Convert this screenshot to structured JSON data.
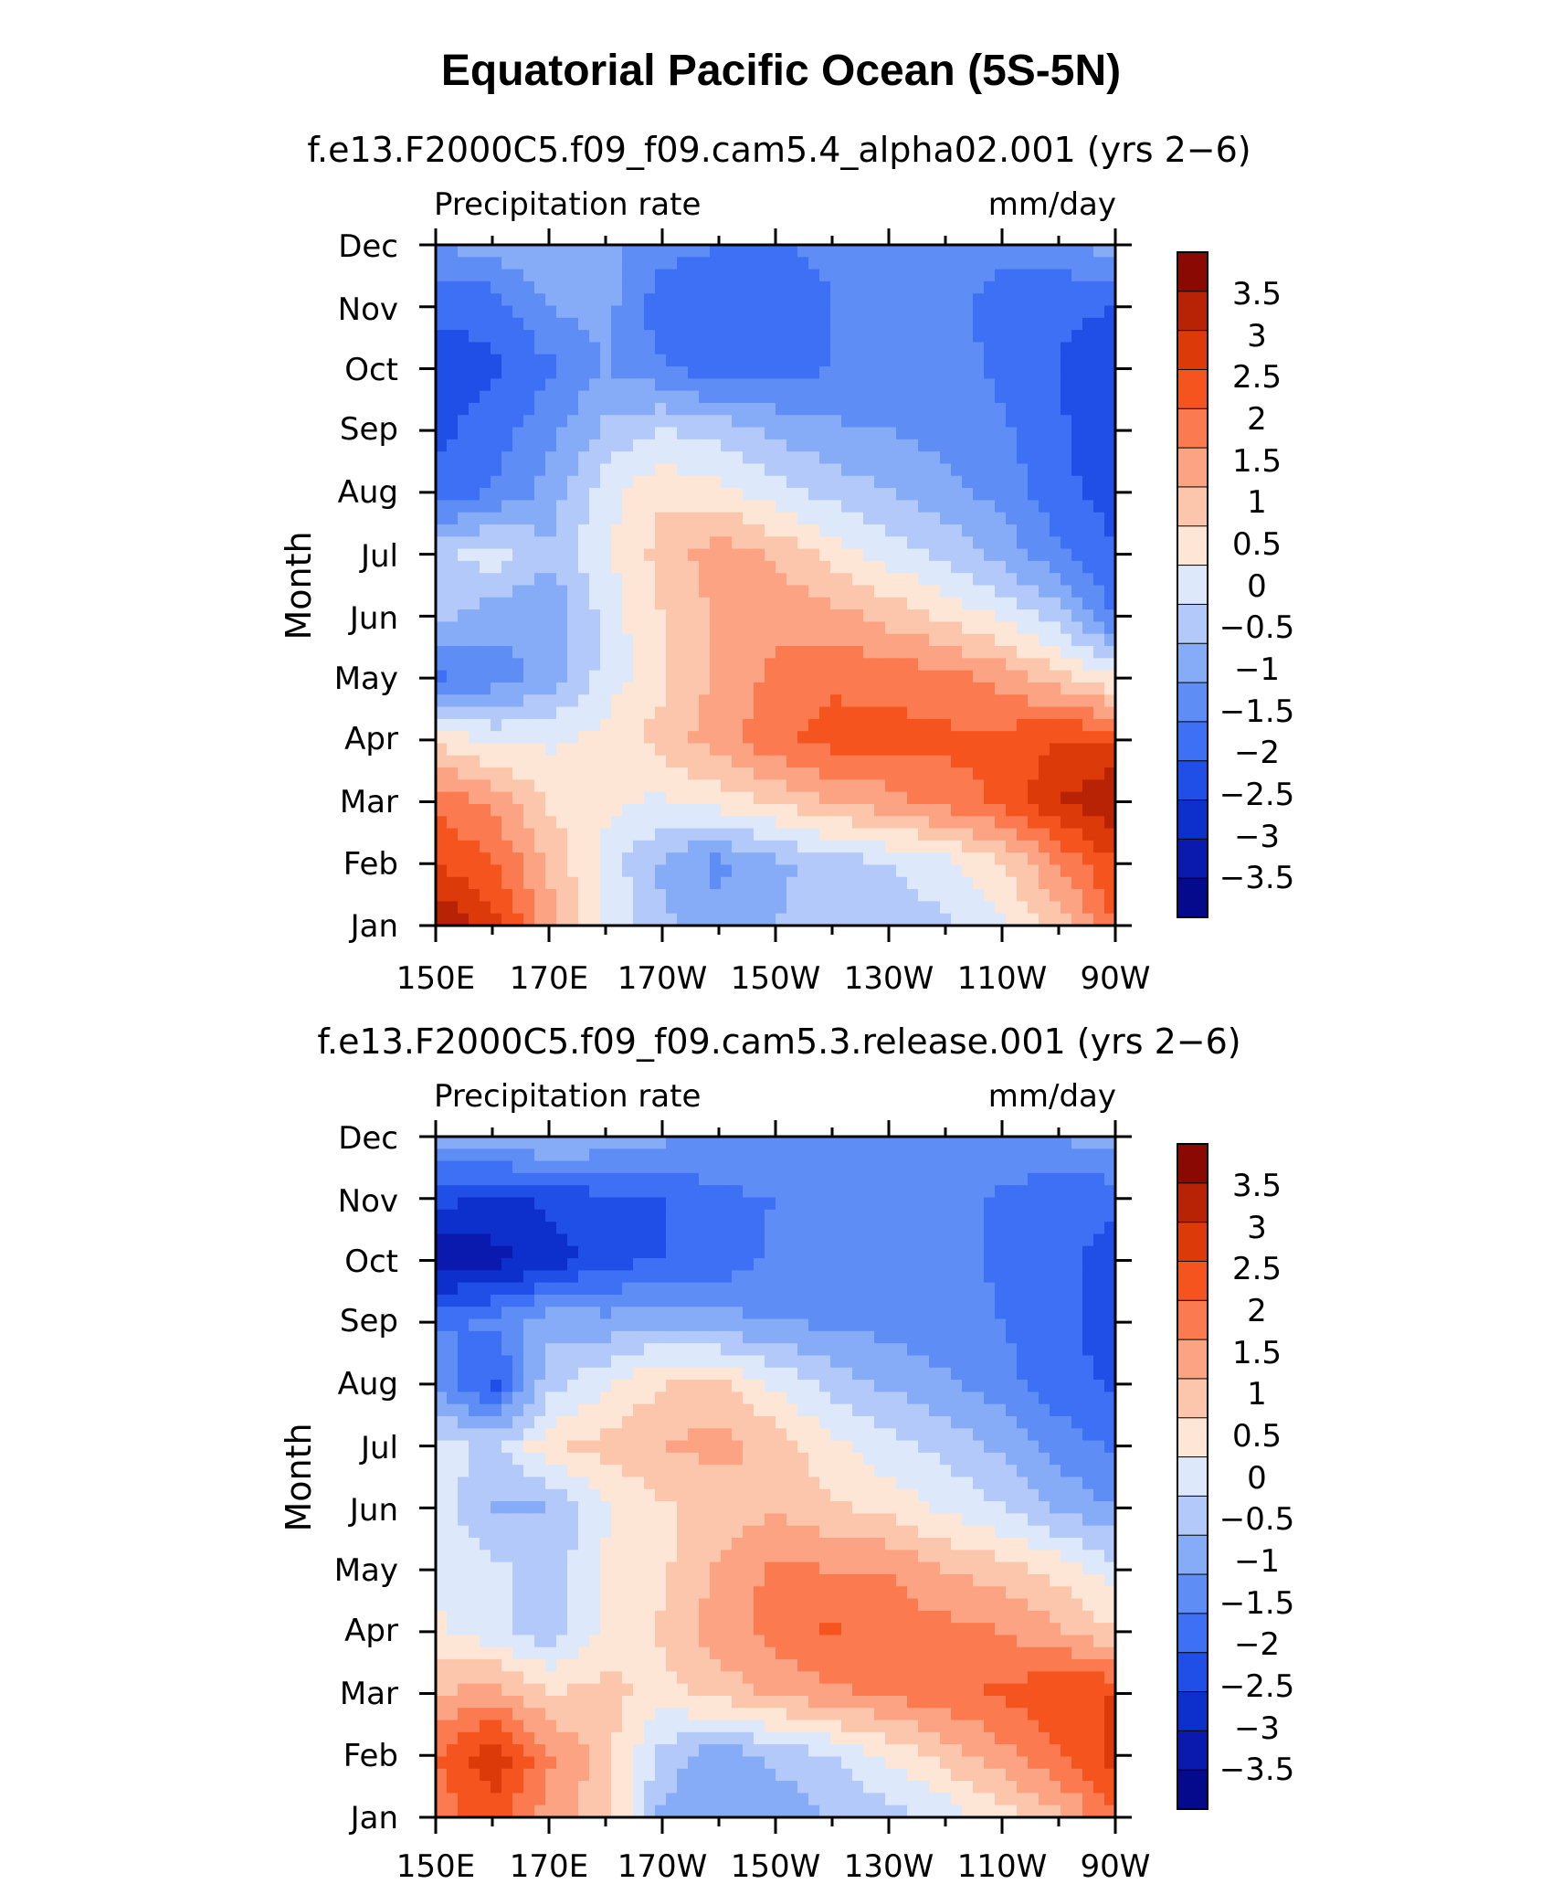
{
  "figure": {
    "title": "Equatorial Pacific Ocean (5S-5N)"
  },
  "chart_data": [
    {
      "type": "heatmap",
      "title": "f.e13.F2000C5.f09_f09.cam5.4_alpha02.001 (yrs 2−6)",
      "left_label": "Precipitation rate",
      "right_label": "mm/day",
      "ylabel": "Month",
      "x_ticks": [
        "150E",
        "170E",
        "170W",
        "150W",
        "130W",
        "110W",
        "90W"
      ],
      "y_ticks": [
        "Jan",
        "Feb",
        "Mar",
        "Apr",
        "May",
        "Jun",
        "Jul",
        "Aug",
        "Sep",
        "Oct",
        "Nov",
        "Dec"
      ],
      "xlim_deg_east": [
        150,
        270
      ],
      "colorbar_labels": [
        "3.5",
        "3",
        "2.5",
        "2",
        "1.5",
        "1",
        "0.5",
        "0",
        "−0.5",
        "−1",
        "−1.5",
        "−2",
        "−2.5",
        "−3",
        "−3.5"
      ],
      "colorbar_levels": [
        -3.5,
        -3,
        -2.5,
        -2,
        -1.5,
        -1,
        -0.5,
        0,
        0.5,
        1,
        1.5,
        2,
        2.5,
        3,
        3.5
      ],
      "colorbar_colors": [
        "#050a8c",
        "#0a1aaf",
        "#0d30cc",
        "#1f4fe6",
        "#3d70f4",
        "#5e8df6",
        "#86acf8",
        "#b2c9fa",
        "#dde8fb",
        "#fde6d6",
        "#fcc6ad",
        "#fca383",
        "#fb7a4f",
        "#f5541f",
        "#dd3a0a",
        "#b82305",
        "#8a0a03"
      ],
      "lons": [
        150,
        160,
        170,
        180,
        190,
        200,
        210,
        220,
        230,
        240,
        250,
        260,
        270
      ],
      "values": [
        [
          4.0,
          3.2,
          1.8,
          0.5,
          -0.4,
          -0.7,
          -0.5,
          -0.2,
          -0.2,
          -0.1,
          0.4,
          1.2,
          2.5
        ],
        [
          3.0,
          2.6,
          1.4,
          0.3,
          -0.6,
          -1.2,
          -0.6,
          -0.3,
          0.0,
          0.3,
          1.0,
          2.0,
          3.0
        ],
        [
          2.4,
          1.9,
          0.9,
          0.6,
          0.4,
          0.7,
          1.1,
          1.5,
          1.8,
          2.2,
          2.6,
          3.5,
          4.0
        ],
        [
          0.8,
          0.4,
          0.4,
          0.7,
          1.2,
          1.8,
          2.4,
          2.7,
          2.7,
          2.6,
          2.7,
          3.0,
          3.0
        ],
        [
          -1.6,
          -1.3,
          -0.8,
          0.2,
          0.9,
          1.6,
          2.1,
          2.4,
          2.3,
          2.2,
          1.8,
          1.2,
          0.5
        ],
        [
          -0.3,
          -0.8,
          -1.0,
          0.2,
          1.0,
          1.6,
          1.9,
          1.7,
          1.3,
          0.9,
          0.4,
          -0.3,
          -1.6
        ],
        [
          -0.2,
          0.3,
          -0.4,
          0.4,
          1.2,
          1.8,
          1.4,
          0.8,
          0.3,
          -0.1,
          -0.7,
          -1.4,
          -1.9
        ],
        [
          -1.8,
          -1.5,
          -0.8,
          0.3,
          0.9,
          0.7,
          0.2,
          -0.2,
          -0.5,
          -0.8,
          -1.2,
          -1.8,
          -2.3
        ],
        [
          -2.2,
          -1.7,
          -1.2,
          -0.4,
          0.0,
          -0.2,
          -0.6,
          -0.9,
          -1.0,
          -1.2,
          -1.4,
          -1.9,
          -2.5
        ],
        [
          -2.3,
          -2.1,
          -1.6,
          -1.0,
          -1.4,
          -1.9,
          -1.8,
          -1.5,
          -1.3,
          -1.3,
          -1.6,
          -2.0,
          -2.4
        ],
        [
          -1.9,
          -1.8,
          -1.0,
          -0.8,
          -1.8,
          -2.0,
          -1.9,
          -1.5,
          -1.3,
          -1.3,
          -1.7,
          -1.9,
          -2.0
        ],
        [
          -1.0,
          -0.8,
          -0.6,
          -0.9,
          -1.3,
          -1.5,
          -1.5,
          -1.4,
          -1.3,
          -1.3,
          -1.4,
          -1.2,
          -0.7
        ]
      ]
    },
    {
      "type": "heatmap",
      "title": "f.e13.F2000C5.f09_f09.cam5.3.release.001 (yrs 2−6)",
      "left_label": "Precipitation rate",
      "right_label": "mm/day",
      "ylabel": "Month",
      "x_ticks": [
        "150E",
        "170E",
        "170W",
        "150W",
        "130W",
        "110W",
        "90W"
      ],
      "y_ticks": [
        "Jan",
        "Feb",
        "Mar",
        "Apr",
        "May",
        "Jun",
        "Jul",
        "Aug",
        "Sep",
        "Oct",
        "Nov",
        "Dec"
      ],
      "xlim_deg_east": [
        150,
        270
      ],
      "colorbar_labels": [
        "3.5",
        "3",
        "2.5",
        "2",
        "1.5",
        "1",
        "0.5",
        "0",
        "−0.5",
        "−1",
        "−1.5",
        "−2",
        "−2.5",
        "−3",
        "−3.5"
      ],
      "colorbar_levels": [
        -3.5,
        -3,
        -2.5,
        -2,
        -1.5,
        -1,
        -0.5,
        0,
        0.5,
        1,
        1.5,
        2,
        2.5,
        3,
        3.5
      ],
      "colorbar_colors": [
        "#050a8c",
        "#0a1aaf",
        "#0d30cc",
        "#1f4fe6",
        "#3d70f4",
        "#5e8df6",
        "#86acf8",
        "#b2c9fa",
        "#dde8fb",
        "#fde6d6",
        "#fcc6ad",
        "#fca383",
        "#fb7a4f",
        "#f5541f",
        "#dd3a0a",
        "#b82305",
        "#8a0a03"
      ],
      "lons": [
        150,
        160,
        170,
        180,
        190,
        200,
        210,
        220,
        230,
        240,
        250,
        260,
        270
      ],
      "values": [
        [
          2.2,
          2.8,
          1.8,
          1.2,
          -0.6,
          -1.0,
          -0.8,
          -0.5,
          -0.2,
          0.2,
          0.8,
          1.4,
          2.4
        ],
        [
          2.5,
          3.4,
          2.1,
          1.2,
          -0.2,
          -0.8,
          -0.4,
          0.0,
          0.6,
          1.2,
          1.8,
          2.4,
          3.2
        ],
        [
          1.4,
          1.8,
          1.0,
          1.2,
          0.8,
          1.2,
          1.6,
          1.9,
          2.1,
          2.3,
          2.6,
          2.9,
          3.0
        ],
        [
          0.6,
          0.2,
          -0.3,
          0.6,
          1.1,
          1.8,
          2.2,
          2.6,
          2.2,
          2.2,
          2.0,
          1.6,
          1.0
        ],
        [
          0.4,
          0.2,
          -0.3,
          0.6,
          0.9,
          1.6,
          2.1,
          2.0,
          2.0,
          1.5,
          1.2,
          0.8,
          0.2
        ],
        [
          0.4,
          -0.6,
          -0.5,
          0.4,
          0.9,
          1.2,
          1.4,
          1.1,
          0.8,
          0.4,
          0.0,
          -0.6,
          -1.0
        ],
        [
          0.3,
          -0.2,
          0.9,
          1.2,
          1.5,
          1.7,
          1.3,
          0.6,
          0.2,
          -0.2,
          -0.6,
          -1.2,
          -1.6
        ],
        [
          -1.0,
          -2.2,
          -0.2,
          0.4,
          1.0,
          1.1,
          0.4,
          -0.2,
          -0.6,
          -0.9,
          -1.3,
          -1.8,
          -2.1
        ],
        [
          -1.6,
          -1.4,
          -0.6,
          -0.8,
          -0.6,
          -0.8,
          -1.0,
          -1.1,
          -1.2,
          -1.3,
          -1.5,
          -1.9,
          -2.2
        ],
        [
          -3.4,
          -3.2,
          -2.8,
          -2.2,
          -2.0,
          -1.8,
          -1.4,
          -1.3,
          -1.3,
          -1.3,
          -1.6,
          -1.9,
          -2.2
        ],
        [
          -2.3,
          -2.6,
          -2.4,
          -2.1,
          -2.0,
          -1.6,
          -1.5,
          -1.3,
          -1.3,
          -1.3,
          -1.6,
          -1.8,
          -1.9
        ],
        [
          -0.8,
          -0.6,
          -0.3,
          -0.6,
          -0.9,
          -1.0,
          -1.1,
          -1.1,
          -1.1,
          -1.1,
          -1.1,
          -1.0,
          -0.6
        ]
      ]
    }
  ]
}
